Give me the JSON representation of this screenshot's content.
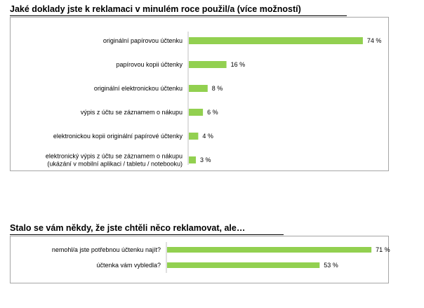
{
  "colors": {
    "bar": "#92d050",
    "border": "#a6a6a6"
  },
  "chart_data": [
    {
      "type": "bar",
      "orientation": "horizontal",
      "title": "Jaké doklady jste k reklamaci v minulém roce použil/a (více možností)",
      "categories": [
        [
          "originální papírovou účtenku"
        ],
        [
          "papírovou kopii účtenky"
        ],
        [
          "originální elektronickou účtenku"
        ],
        [
          "výpis z účtu se záznamem o nákupu"
        ],
        [
          "elektronickou kopii originální papírové účtenky"
        ],
        [
          "elektronický výpis z účtu se záznamem o nákupu",
          "(ukázání v mobilní aplikaci / tabletu / notebooku)"
        ]
      ],
      "values": [
        74,
        16,
        8,
        6,
        4,
        3
      ],
      "value_labels": [
        "74 %",
        "16 %",
        "8 %",
        "6 %",
        "4 %",
        "3 %"
      ],
      "unit": "%",
      "xlim": [
        0,
        100
      ],
      "grid": false
    },
    {
      "type": "bar",
      "orientation": "horizontal",
      "title": "Stalo se vám někdy, že jste chtěli něco reklamovat, ale…",
      "categories": [
        [
          "nemohl/a jste potřebnou účtenku najít?"
        ],
        [
          "účtenka vám vybledla?"
        ]
      ],
      "values": [
        71,
        53
      ],
      "value_labels": [
        "71 %",
        "53 %"
      ],
      "unit": "%",
      "xlim": [
        0,
        100
      ],
      "grid": false
    }
  ]
}
